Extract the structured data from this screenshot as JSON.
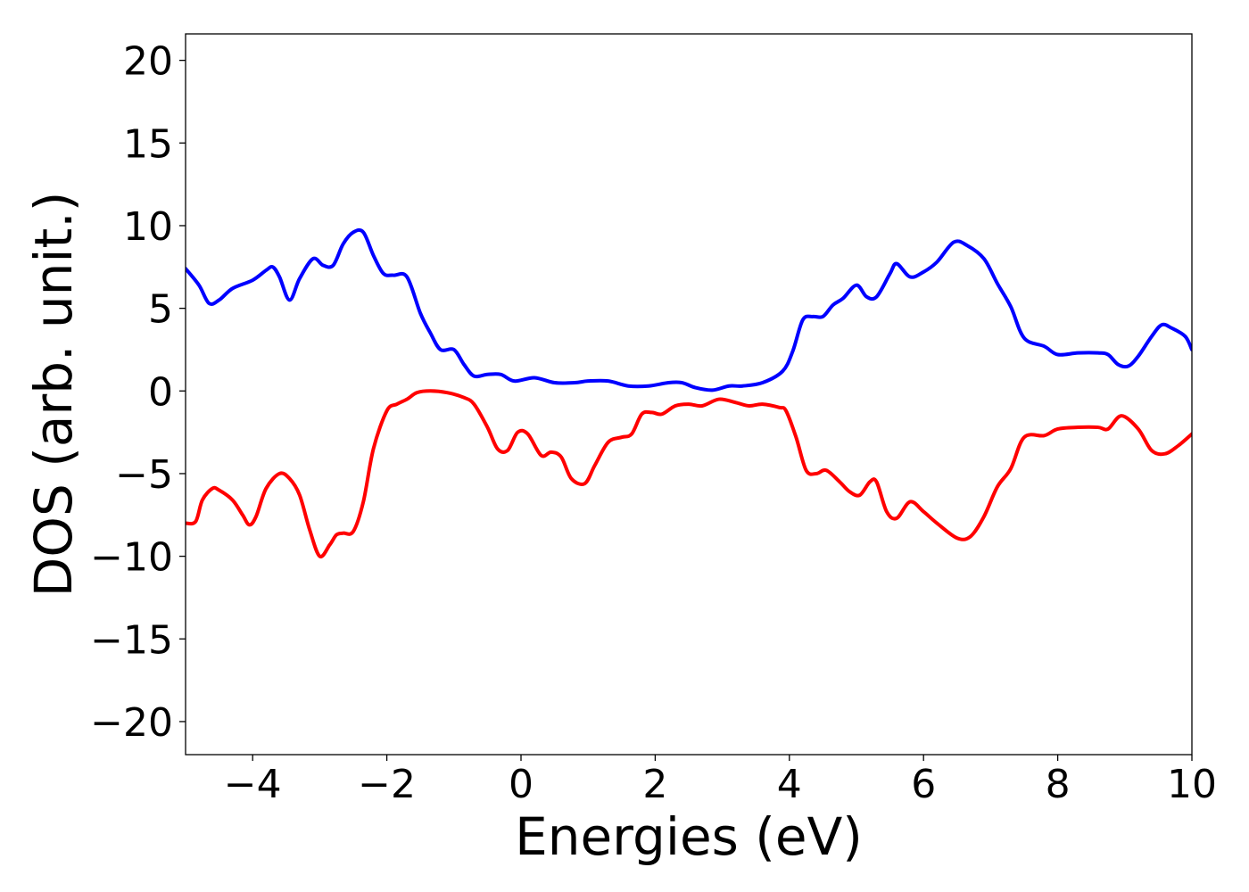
{
  "chart_data": {
    "type": "line",
    "title": "",
    "xlabel": "Energies (eV)",
    "ylabel": "DOS (arb. unit.)",
    "xlim": [
      -5,
      10
    ],
    "ylim": [
      -22,
      21.6
    ],
    "x_ticks": [
      -4,
      -2,
      0,
      2,
      4,
      6,
      8,
      10
    ],
    "x_tick_labels": [
      "−4",
      "−2",
      "0",
      "2",
      "4",
      "6",
      "8",
      "10"
    ],
    "y_ticks": [
      20,
      15,
      10,
      5,
      0,
      -5,
      -10,
      -15,
      -20
    ],
    "y_tick_labels": [
      "20",
      "15",
      "10",
      "5",
      "0",
      "−5",
      "−10",
      "−15",
      "−20"
    ],
    "grid": false,
    "legend": "none",
    "series": [
      {
        "color": "#0000ff",
        "x": [
          -5.0,
          -4.8,
          -4.65,
          -4.5,
          -4.3,
          -4.0,
          -3.8,
          -3.7,
          -3.6,
          -3.45,
          -3.3,
          -3.1,
          -2.95,
          -2.8,
          -2.65,
          -2.5,
          -2.35,
          -2.2,
          -2.05,
          -1.9,
          -1.7,
          -1.5,
          -1.35,
          -1.2,
          -1.0,
          -0.85,
          -0.7,
          -0.5,
          -0.3,
          -0.1,
          0.2,
          0.5,
          0.8,
          1.0,
          1.3,
          1.6,
          1.9,
          2.2,
          2.4,
          2.6,
          2.85,
          3.1,
          3.3,
          3.6,
          3.9,
          4.05,
          4.2,
          4.35,
          4.5,
          4.65,
          4.8,
          5.0,
          5.15,
          5.3,
          5.5,
          5.6,
          5.8,
          6.0,
          6.2,
          6.45,
          6.65,
          6.9,
          7.1,
          7.3,
          7.5,
          7.8,
          8.0,
          8.3,
          8.6,
          8.75,
          8.9,
          9.05,
          9.2,
          9.4,
          9.55,
          9.7,
          9.9,
          10.0
        ],
        "y": [
          7.4,
          6.4,
          5.3,
          5.5,
          6.2,
          6.7,
          7.3,
          7.5,
          6.9,
          5.5,
          6.8,
          8.0,
          7.6,
          7.6,
          8.9,
          9.6,
          9.6,
          8.2,
          7.1,
          7.0,
          6.9,
          4.7,
          3.5,
          2.5,
          2.5,
          1.6,
          0.9,
          1.0,
          1.0,
          0.6,
          0.8,
          0.5,
          0.5,
          0.6,
          0.6,
          0.3,
          0.3,
          0.5,
          0.5,
          0.2,
          0.05,
          0.3,
          0.3,
          0.5,
          1.2,
          2.4,
          4.3,
          4.5,
          4.5,
          5.2,
          5.6,
          6.4,
          5.7,
          5.7,
          7.1,
          7.7,
          6.9,
          7.2,
          7.8,
          9.0,
          8.8,
          8.0,
          6.5,
          5.1,
          3.2,
          2.7,
          2.2,
          2.3,
          2.3,
          2.2,
          1.6,
          1.5,
          2.1,
          3.3,
          4.0,
          3.8,
          3.3,
          2.5
        ]
      },
      {
        "color": "#ff0000",
        "x": [
          -5.0,
          -4.85,
          -4.75,
          -4.6,
          -4.5,
          -4.3,
          -4.15,
          -4.05,
          -3.95,
          -3.8,
          -3.6,
          -3.45,
          -3.3,
          -3.15,
          -3.0,
          -2.85,
          -2.75,
          -2.65,
          -2.5,
          -2.35,
          -2.2,
          -2.0,
          -1.85,
          -1.7,
          -1.55,
          -1.35,
          -1.1,
          -0.85,
          -0.7,
          -0.5,
          -0.35,
          -0.2,
          -0.05,
          0.1,
          0.3,
          0.45,
          0.6,
          0.75,
          0.95,
          1.1,
          1.3,
          1.5,
          1.65,
          1.8,
          1.95,
          2.1,
          2.3,
          2.5,
          2.7,
          2.95,
          3.2,
          3.4,
          3.6,
          3.85,
          3.95,
          4.1,
          4.25,
          4.4,
          4.55,
          4.75,
          4.9,
          5.05,
          5.2,
          5.3,
          5.45,
          5.6,
          5.8,
          6.0,
          6.2,
          6.5,
          6.7,
          6.9,
          7.1,
          7.3,
          7.5,
          7.8,
          8.0,
          8.3,
          8.6,
          8.75,
          8.95,
          9.2,
          9.4,
          9.6,
          9.8,
          10.0
        ],
        "y": [
          -8.0,
          -7.9,
          -6.6,
          -5.9,
          -6.0,
          -6.6,
          -7.5,
          -8.1,
          -7.6,
          -5.9,
          -5.0,
          -5.3,
          -6.3,
          -8.4,
          -10.0,
          -9.3,
          -8.7,
          -8.6,
          -8.5,
          -6.7,
          -3.5,
          -1.2,
          -0.8,
          -0.5,
          -0.1,
          0.0,
          -0.1,
          -0.4,
          -0.8,
          -2.2,
          -3.5,
          -3.6,
          -2.5,
          -2.6,
          -3.9,
          -3.7,
          -4.0,
          -5.3,
          -5.6,
          -4.5,
          -3.1,
          -2.8,
          -2.6,
          -1.4,
          -1.3,
          -1.4,
          -0.9,
          -0.8,
          -0.9,
          -0.5,
          -0.7,
          -0.9,
          -0.8,
          -1.0,
          -1.2,
          -2.8,
          -4.8,
          -5.0,
          -4.8,
          -5.5,
          -6.1,
          -6.3,
          -5.5,
          -5.5,
          -7.3,
          -7.7,
          -6.7,
          -7.3,
          -8.0,
          -8.9,
          -8.8,
          -7.6,
          -5.8,
          -4.7,
          -2.8,
          -2.7,
          -2.3,
          -2.2,
          -2.2,
          -2.3,
          -1.5,
          -2.3,
          -3.6,
          -3.8,
          -3.3,
          -2.6
        ]
      }
    ]
  }
}
